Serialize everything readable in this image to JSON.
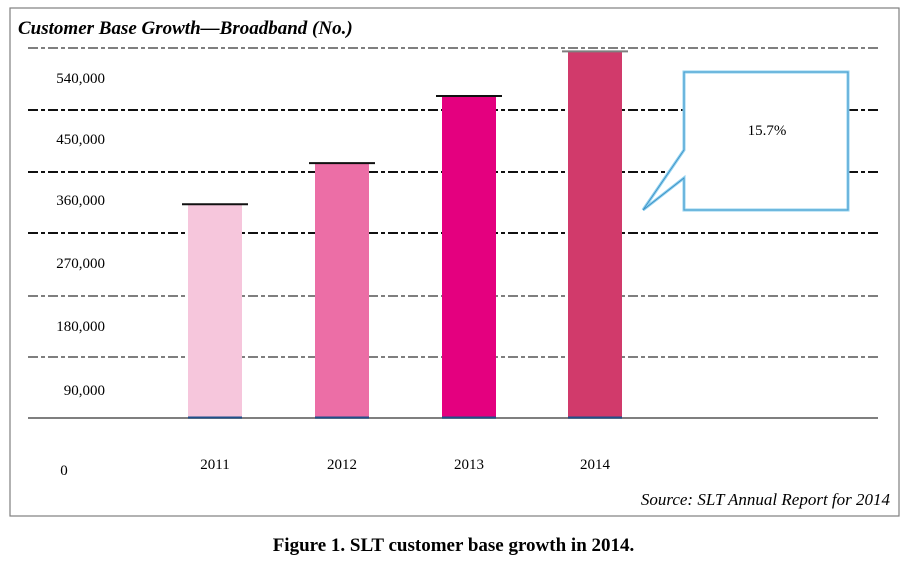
{
  "chart_data": {
    "type": "bar",
    "title": "Customer Base Growth—Broadband (No.)",
    "categories": [
      "2011",
      "2012",
      "2013",
      "2014"
    ],
    "values": [
      312000,
      372000,
      470000,
      535000
    ],
    "colors": [
      "#f6c6dc",
      "#ec6ea6",
      "#e4007f",
      "#d13a6b"
    ],
    "ylim": [
      0,
      540000
    ],
    "yticks": [
      "0",
      "90,000",
      "180,000",
      "270,000",
      "360,000",
      "450,000",
      "540,000"
    ],
    "annotation": "15.7%",
    "source": "Source: SLT Annual Report for 2014",
    "grid": true,
    "legend": false
  },
  "caption": "Figure 1. SLT customer base growth in 2014."
}
